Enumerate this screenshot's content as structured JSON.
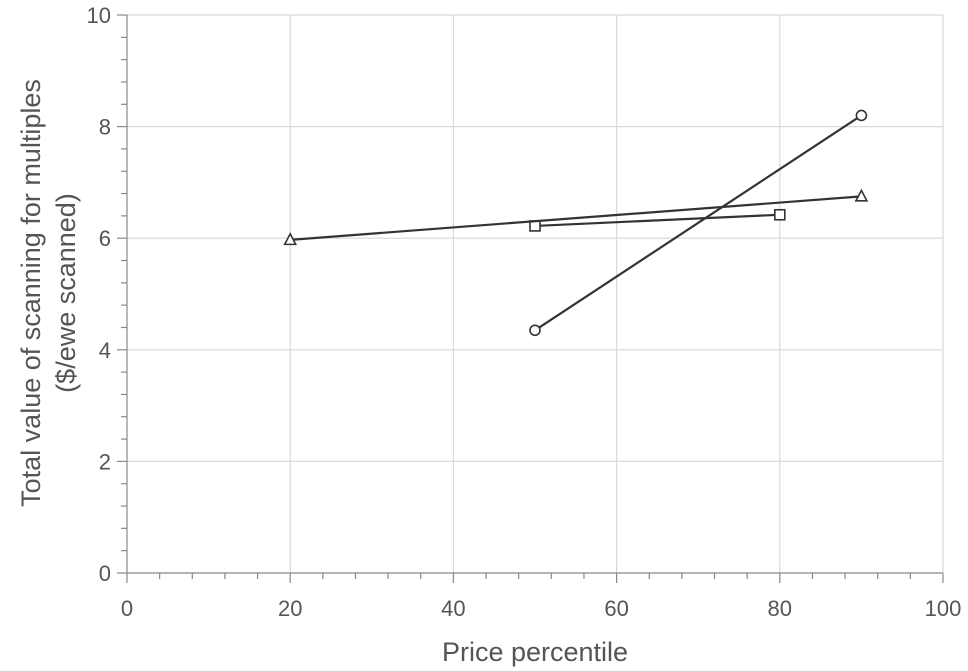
{
  "chart_data": {
    "type": "line",
    "title": "",
    "xlabel": "Price percentile",
    "ylabel_lines": [
      "Total value of scanning for multiples",
      "($/ewe scanned)"
    ],
    "xlim": [
      0,
      100
    ],
    "ylim": [
      0,
      10
    ],
    "xticks": [
      0,
      20,
      40,
      60,
      80,
      100
    ],
    "yticks": [
      0,
      2,
      4,
      6,
      8,
      10
    ],
    "grid": true,
    "legend": "none",
    "colors": {
      "line": "#333333",
      "grid": "#d9d9d9",
      "axis": "#888888",
      "text": "#555555"
    },
    "series": [
      {
        "marker": "circle",
        "x": [
          50,
          90
        ],
        "y": [
          4.35,
          8.2
        ]
      },
      {
        "marker": "square",
        "x": [
          50,
          80
        ],
        "y": [
          6.22,
          6.42
        ]
      },
      {
        "marker": "triangle",
        "x": [
          20,
          90
        ],
        "y": [
          5.97,
          6.75
        ]
      }
    ]
  }
}
